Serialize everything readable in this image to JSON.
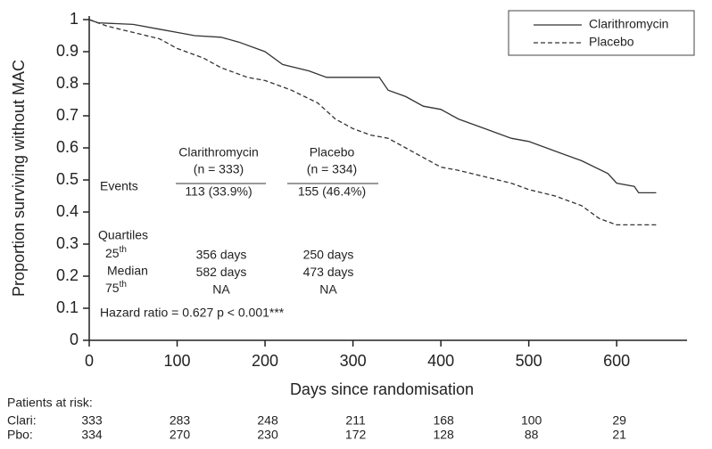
{
  "chart_data": {
    "type": "line",
    "xlabel": "Days since randomisation",
    "ylabel": "Proportion surviving without MAC",
    "xlim": [
      0,
      680
    ],
    "ylim": [
      0,
      1
    ],
    "xticks": [
      0,
      100,
      200,
      300,
      400,
      500,
      600
    ],
    "yticks": [
      0,
      0.1,
      0.2,
      0.3,
      0.4,
      0.5,
      0.6,
      0.7,
      0.8,
      0.9,
      1
    ],
    "legend": "top-right",
    "series": [
      {
        "name": "Clarithromycin",
        "color": "#333333",
        "dash": "solid",
        "x": [
          0,
          10,
          50,
          80,
          100,
          120,
          150,
          170,
          200,
          220,
          250,
          270,
          330,
          340,
          360,
          380,
          400,
          420,
          450,
          480,
          500,
          530,
          560,
          590,
          600,
          620,
          625,
          645
        ],
        "values": [
          1,
          0.99,
          0.985,
          0.97,
          0.96,
          0.95,
          0.945,
          0.93,
          0.9,
          0.86,
          0.84,
          0.82,
          0.82,
          0.78,
          0.76,
          0.73,
          0.72,
          0.69,
          0.66,
          0.63,
          0.62,
          0.59,
          0.56,
          0.52,
          0.49,
          0.48,
          0.46,
          0.46
        ]
      },
      {
        "name": "Placebo",
        "color": "#333333",
        "dash": "dashed",
        "x": [
          0,
          20,
          50,
          80,
          100,
          130,
          150,
          180,
          200,
          230,
          260,
          280,
          300,
          320,
          340,
          360,
          380,
          400,
          420,
          450,
          480,
          500,
          530,
          560,
          580,
          600,
          645
        ],
        "values": [
          1,
          0.98,
          0.96,
          0.94,
          0.91,
          0.88,
          0.85,
          0.82,
          0.81,
          0.78,
          0.74,
          0.69,
          0.66,
          0.64,
          0.63,
          0.6,
          0.57,
          0.54,
          0.53,
          0.51,
          0.49,
          0.47,
          0.45,
          0.42,
          0.38,
          0.36,
          0.36
        ]
      }
    ],
    "inset": {
      "col1": [
        "Clarithromycin",
        "(n = 333)"
      ],
      "col2": [
        "Placebo",
        "(n = 334)"
      ],
      "events_label": "Events",
      "events": [
        "113 (33.9%)",
        "155 (46.4%)"
      ],
      "quartiles_label": "Quartiles",
      "quartiles": [
        {
          "num": "25",
          "sup": "th",
          "values": [
            "356 days",
            "250 days"
          ]
        },
        {
          "num": "Median",
          "sup": "",
          "values": [
            "582 days",
            "473 days"
          ]
        },
        {
          "num": "75",
          "sup": "th",
          "values": [
            "NA",
            "NA"
          ]
        }
      ],
      "hazard": "Hazard ratio = 0.627 p < 0.001***"
    },
    "risk_table": {
      "title": "Patients at risk:",
      "rows": [
        {
          "label": "Clari:",
          "x": [
            0,
            100,
            200,
            300,
            400,
            500,
            600
          ],
          "values": [
            333,
            283,
            248,
            211,
            168,
            100,
            29
          ]
        },
        {
          "label": "Pbo:",
          "x": [
            0,
            100,
            200,
            300,
            400,
            500,
            600
          ],
          "values": [
            334,
            270,
            230,
            172,
            128,
            88,
            21
          ]
        }
      ]
    }
  }
}
